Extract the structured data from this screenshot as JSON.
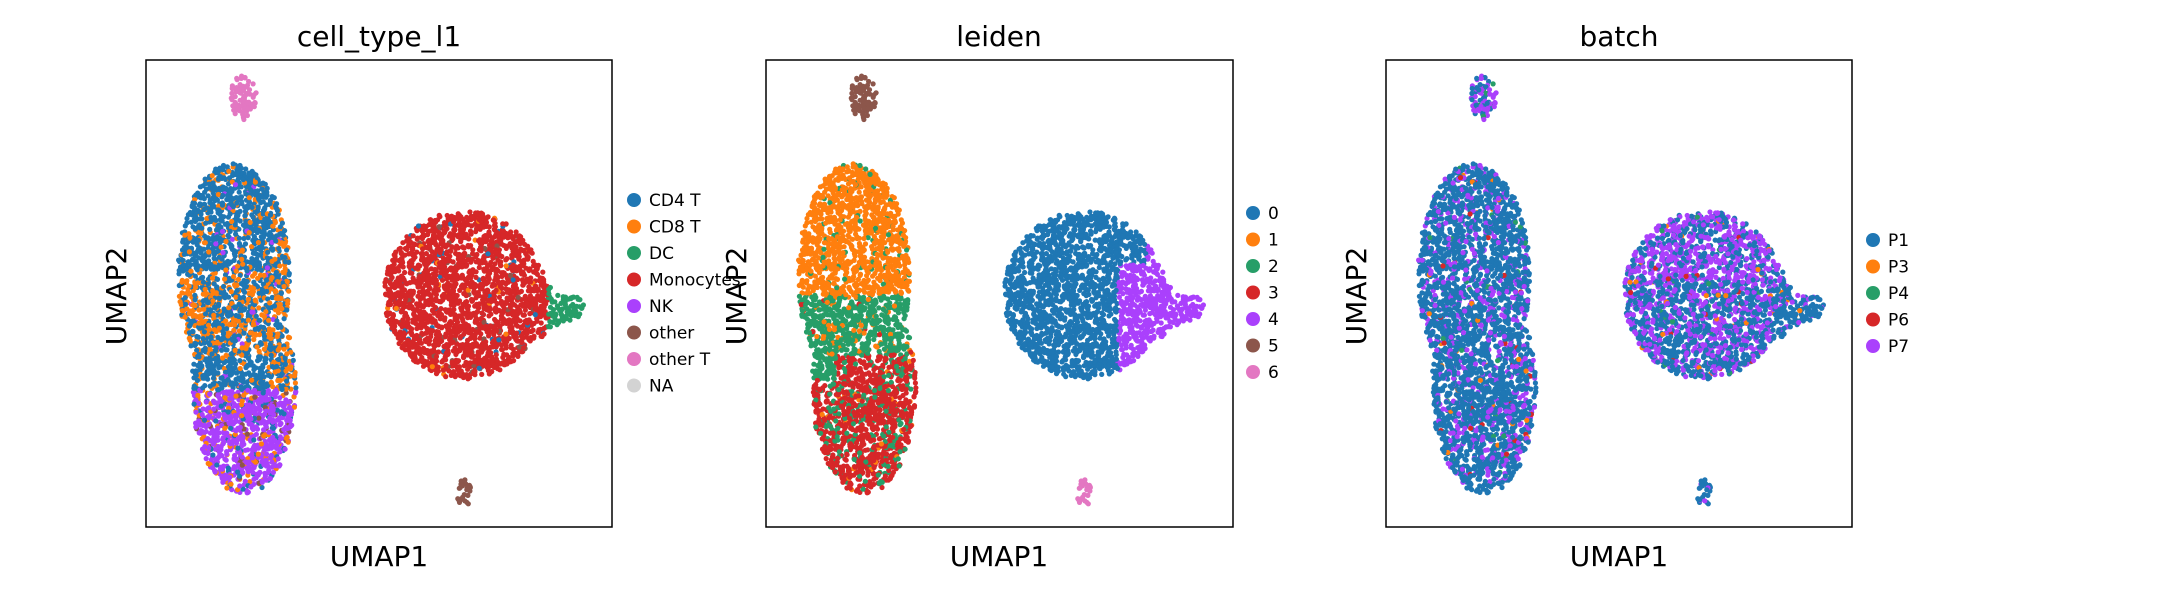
{
  "chart_data": [
    {
      "type": "scatter",
      "title": "cell_type_l1",
      "xlabel": "UMAP1",
      "ylabel": "UMAP2",
      "legend_position": "right",
      "legend": [
        {
          "label": "CD4 T",
          "color": "#1f77b4"
        },
        {
          "label": "CD8 T",
          "color": "#ff7f0e"
        },
        {
          "label": "DC",
          "color": "#279e68"
        },
        {
          "label": "Monocytes",
          "color": "#d62728"
        },
        {
          "label": "NK",
          "color": "#aa40fc"
        },
        {
          "label": "other",
          "color": "#8c564b"
        },
        {
          "label": "other T",
          "color": "#e377c2"
        },
        {
          "label": "NA",
          "color": "#d3d3d3"
        }
      ]
    },
    {
      "type": "scatter",
      "title": "leiden",
      "xlabel": "UMAP1",
      "ylabel": "UMAP2",
      "legend_position": "right",
      "legend": [
        {
          "label": "0",
          "color": "#1f77b4"
        },
        {
          "label": "1",
          "color": "#ff7f0e"
        },
        {
          "label": "2",
          "color": "#279e68"
        },
        {
          "label": "3",
          "color": "#d62728"
        },
        {
          "label": "4",
          "color": "#aa40fc"
        },
        {
          "label": "5",
          "color": "#8c564b"
        },
        {
          "label": "6",
          "color": "#e377c2"
        }
      ]
    },
    {
      "type": "scatter",
      "title": "batch",
      "xlabel": "UMAP1",
      "ylabel": "UMAP2",
      "legend_position": "right",
      "legend": [
        {
          "label": "P1",
          "color": "#1f77b4"
        },
        {
          "label": "P3",
          "color": "#ff7f0e"
        },
        {
          "label": "P4",
          "color": "#279e68"
        },
        {
          "label": "P6",
          "color": "#d62728"
        },
        {
          "label": "P7",
          "color": "#aa40fc"
        }
      ]
    }
  ]
}
